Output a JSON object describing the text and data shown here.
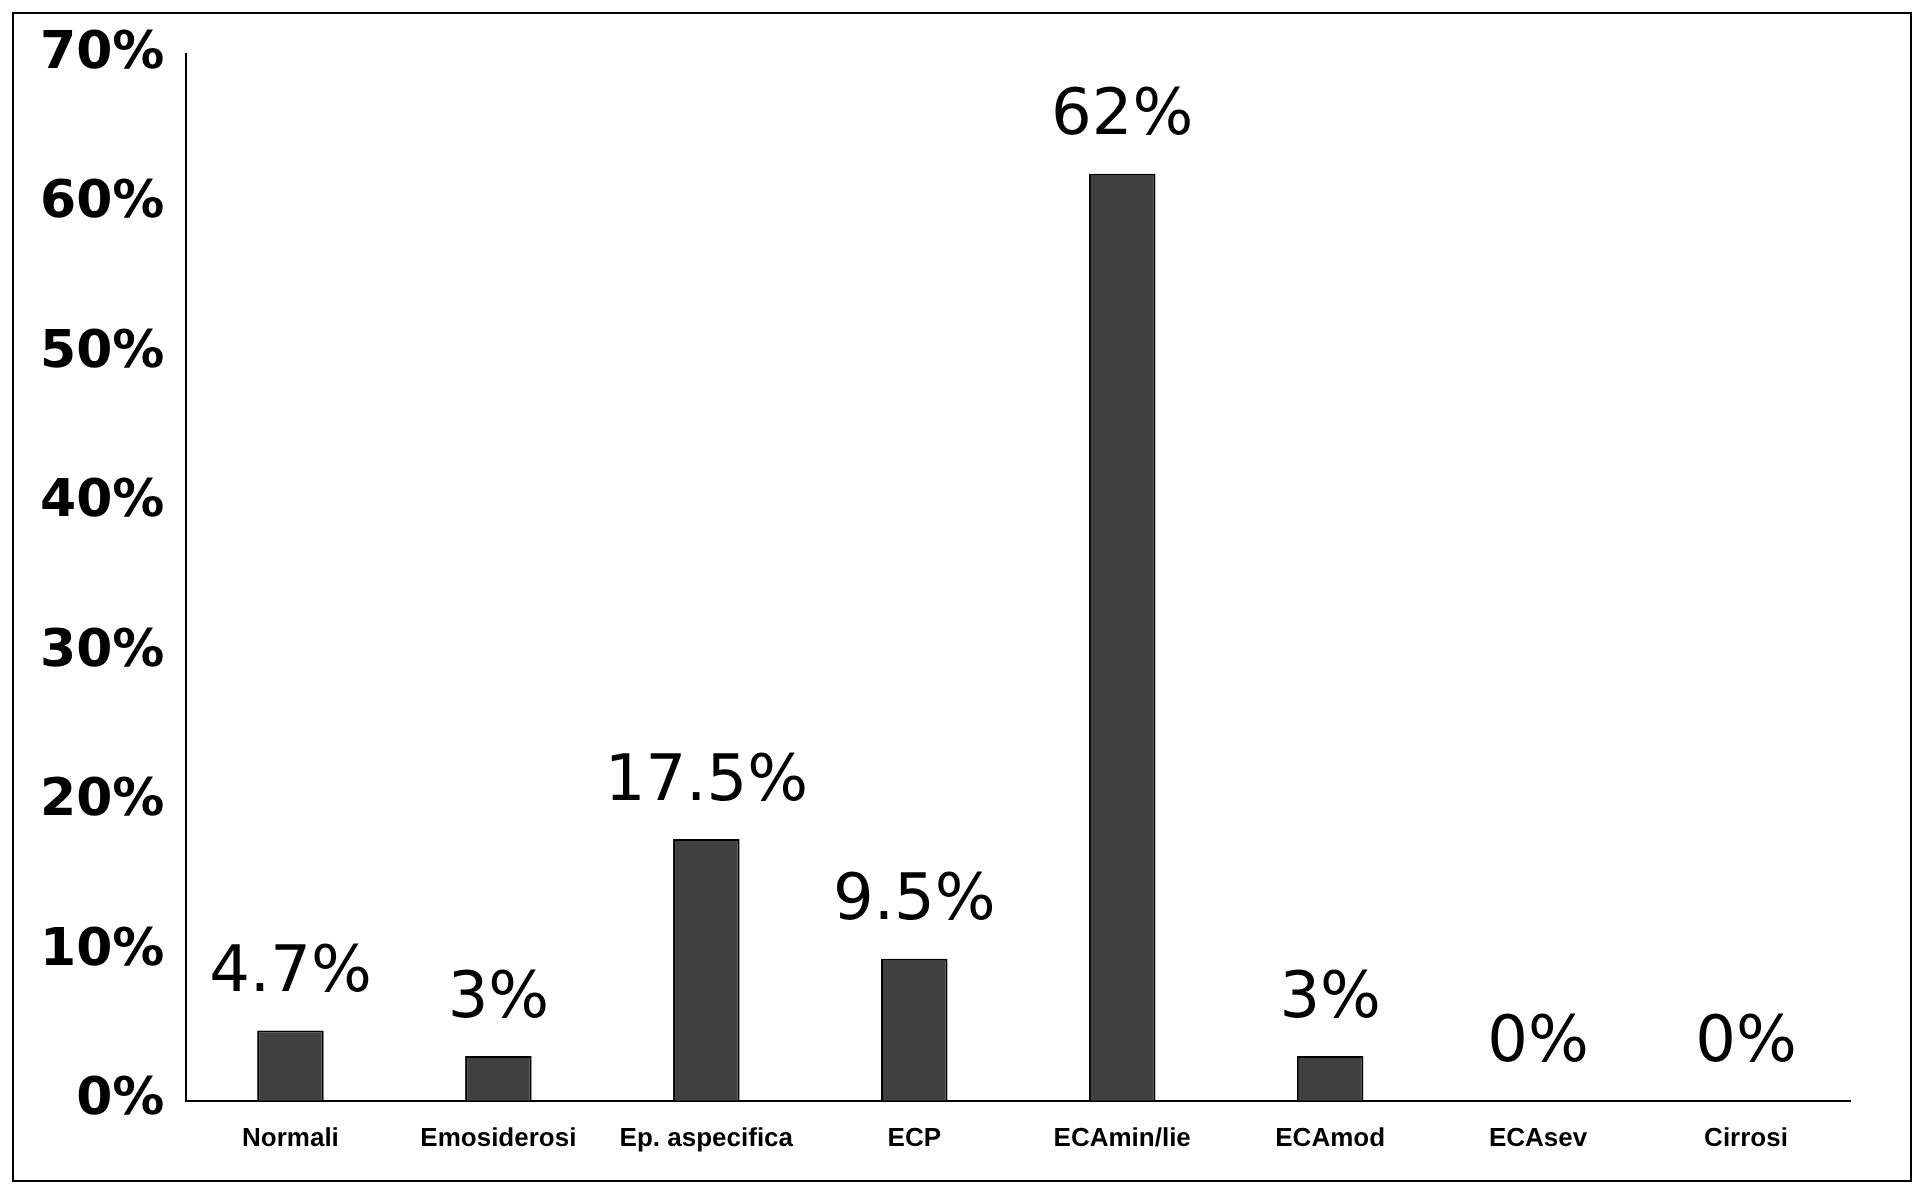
{
  "chart_data": {
    "type": "bar",
    "categories": [
      "Normali",
      "Emosiderosi",
      "Ep. aspecifica",
      "ECP",
      "ECAmin/lie",
      "ECAmod",
      "ECAsev",
      "Cirrosi"
    ],
    "values": [
      4.7,
      3,
      17.5,
      9.5,
      62,
      3,
      0,
      0
    ],
    "value_labels": [
      "4.7%",
      "3%",
      "17.5%",
      "9.5%",
      "62%",
      "3%",
      "0%",
      "0%"
    ],
    "color": "#404040",
    "ylim": [
      0,
      70
    ],
    "yticks": [
      {
        "value": 0,
        "label": "0%"
      },
      {
        "value": 10,
        "label": "10%"
      },
      {
        "value": 20,
        "label": "20%"
      },
      {
        "value": 30,
        "label": "30%"
      },
      {
        "value": 40,
        "label": "40%"
      },
      {
        "value": 50,
        "label": "50%"
      },
      {
        "value": 60,
        "label": "60%"
      },
      {
        "value": 70,
        "label": "70%"
      }
    ],
    "grid": false,
    "legend": false
  }
}
